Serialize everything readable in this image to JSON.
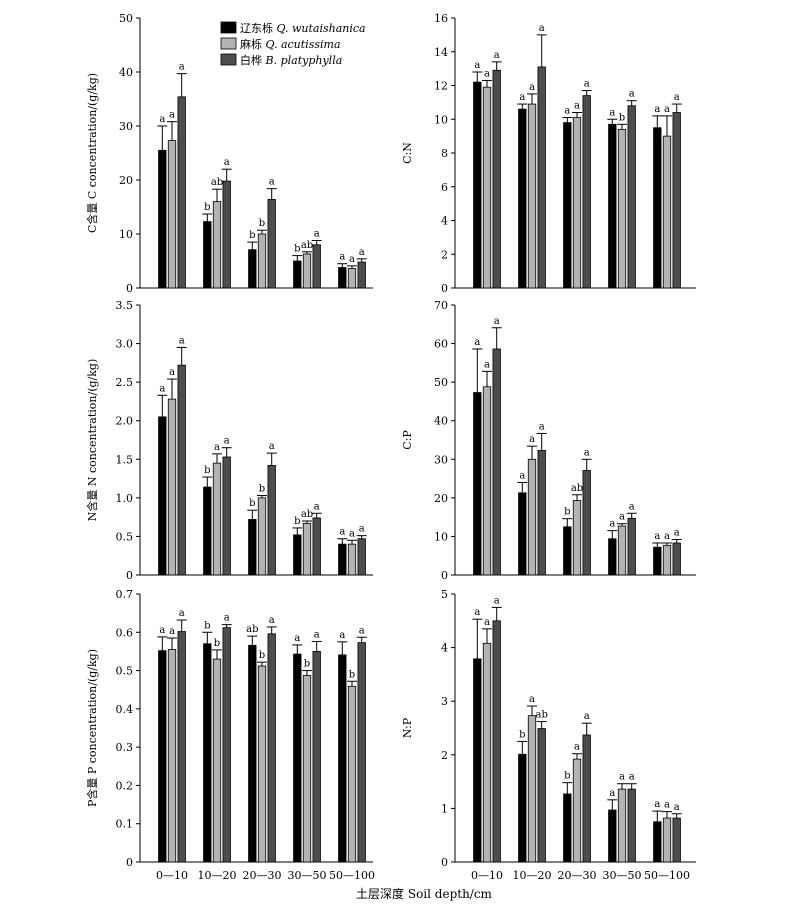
{
  "categories": [
    "0—10",
    "10—20",
    "20—30",
    "30—50",
    "50—100"
  ],
  "xlabel": "土层深度 Soil depth/cm",
  "colors": [
    "#000000",
    "#b3b3b3",
    "#4d4d4d"
  ],
  "legend": [
    {
      "cn": "辽东栎 ",
      "latin": "Q. wutaishanica"
    },
    {
      "cn": "麻栎 ",
      "latin": "Q. acutissima"
    },
    {
      "cn": "白桦 ",
      "latin": "B. platyphylla"
    }
  ],
  "chart_data": [
    {
      "type": "bar",
      "panel": "C",
      "ylabel": "C含量 C concentration/(g/kg)",
      "ylim": [
        0,
        50
      ],
      "yticks": [
        "0",
        "10",
        "20",
        "30",
        "40",
        "50"
      ],
      "categories": [
        "0—10",
        "10—20",
        "20—30",
        "30—50",
        "50—100"
      ],
      "series": [
        {
          "values": [
            25.5,
            12.3,
            7.1,
            5.0,
            3.8
          ],
          "errors": [
            4.5,
            1.4,
            1.4,
            1.0,
            0.7
          ],
          "labels": [
            "a",
            "b",
            "b",
            "b",
            "a"
          ]
        },
        {
          "values": [
            27.3,
            16.0,
            10.0,
            6.3,
            3.6
          ],
          "errors": [
            3.5,
            2.3,
            0.7,
            0.4,
            0.5
          ],
          "labels": [
            "a",
            "ab",
            "b",
            "ab",
            "a"
          ]
        },
        {
          "values": [
            35.4,
            19.8,
            16.4,
            8.0,
            4.8
          ],
          "errors": [
            4.3,
            2.2,
            2.0,
            0.8,
            0.6
          ],
          "labels": [
            "a",
            "a",
            "a",
            "a",
            "a"
          ]
        }
      ]
    },
    {
      "type": "bar",
      "panel": "C:N",
      "ylabel": "C:N",
      "ylim": [
        0,
        16
      ],
      "yticks": [
        "0",
        "2",
        "4",
        "6",
        "8",
        "10",
        "12",
        "14",
        "16"
      ],
      "categories": [
        "0—10",
        "10—20",
        "20—30",
        "30—50",
        "50—100"
      ],
      "series": [
        {
          "values": [
            12.2,
            10.6,
            9.8,
            9.7,
            9.5
          ],
          "errors": [
            0.6,
            0.3,
            0.3,
            0.3,
            0.7
          ],
          "labels": [
            "a",
            "a",
            "a",
            "a",
            "a"
          ]
        },
        {
          "values": [
            11.9,
            10.9,
            10.1,
            9.4,
            9.0
          ],
          "errors": [
            0.4,
            0.6,
            0.3,
            0.3,
            1.2
          ],
          "labels": [
            "a",
            "a",
            "a",
            "b",
            "a"
          ]
        },
        {
          "values": [
            12.9,
            13.1,
            11.4,
            10.8,
            10.4
          ],
          "errors": [
            0.5,
            1.9,
            0.3,
            0.3,
            0.5
          ],
          "labels": [
            "a",
            "a",
            "a",
            "a",
            "a"
          ]
        }
      ]
    },
    {
      "type": "bar",
      "panel": "N",
      "ylabel": "N含量 N concentration/(g/kg)",
      "ylim": [
        0,
        3.5
      ],
      "yticks": [
        "0",
        "0.5",
        "1.0",
        "1.5",
        "2.0",
        "2.5",
        "3.0",
        "3.5"
      ],
      "categories": [
        "0—10",
        "10—20",
        "20—30",
        "30—50",
        "50—100"
      ],
      "series": [
        {
          "values": [
            2.05,
            1.14,
            0.72,
            0.52,
            0.4
          ],
          "errors": [
            0.28,
            0.13,
            0.12,
            0.09,
            0.07
          ],
          "labels": [
            "a",
            "b",
            "b",
            "b",
            "a"
          ]
        },
        {
          "values": [
            2.28,
            1.45,
            1.0,
            0.67,
            0.4
          ],
          "errors": [
            0.26,
            0.12,
            0.03,
            0.03,
            0.05
          ],
          "labels": [
            "a",
            "a",
            "b",
            "ab",
            "a"
          ]
        },
        {
          "values": [
            2.72,
            1.53,
            1.42,
            0.74,
            0.47
          ],
          "errors": [
            0.23,
            0.12,
            0.16,
            0.06,
            0.04
          ],
          "labels": [
            "a",
            "a",
            "a",
            "a",
            "a"
          ]
        }
      ]
    },
    {
      "type": "bar",
      "panel": "C:P",
      "ylabel": "C:P",
      "ylim": [
        0,
        70
      ],
      "yticks": [
        "0",
        "10",
        "20",
        "30",
        "40",
        "50",
        "60",
        "70"
      ],
      "categories": [
        "0—10",
        "10—20",
        "20—30",
        "30—50",
        "50—100"
      ],
      "series": [
        {
          "values": [
            47.3,
            21.3,
            12.5,
            9.4,
            7.2
          ],
          "errors": [
            11.3,
            2.7,
            2.1,
            2.1,
            1.1
          ],
          "labels": [
            "a",
            "a",
            "b",
            "a",
            "a"
          ]
        },
        {
          "values": [
            48.8,
            30.0,
            19.3,
            12.7,
            7.7
          ],
          "errors": [
            4.0,
            3.4,
            1.5,
            0.6,
            0.6
          ],
          "labels": [
            "a",
            "a",
            "ab",
            "a",
            "a"
          ]
        },
        {
          "values": [
            58.6,
            32.3,
            27.1,
            14.7,
            8.3
          ],
          "errors": [
            5.5,
            4.4,
            2.9,
            1.3,
            0.9
          ],
          "labels": [
            "a",
            "a",
            "a",
            "a",
            "a"
          ]
        }
      ]
    },
    {
      "type": "bar",
      "panel": "P",
      "ylabel": "P含量 P concentration/(g/kg)",
      "ylim": [
        0,
        0.7
      ],
      "yticks": [
        "0",
        "0.1",
        "0.2",
        "0.3",
        "0.4",
        "0.5",
        "0.6",
        "0.7"
      ],
      "categories": [
        "0—10",
        "10—20",
        "20—30",
        "30—50",
        "50—100"
      ],
      "series": [
        {
          "values": [
            0.552,
            0.57,
            0.566,
            0.543,
            0.541
          ],
          "errors": [
            0.036,
            0.03,
            0.024,
            0.024,
            0.034
          ],
          "labels": [
            "a",
            "b",
            "ab",
            "a",
            "a"
          ]
        },
        {
          "values": [
            0.555,
            0.53,
            0.512,
            0.487,
            0.459
          ],
          "errors": [
            0.03,
            0.024,
            0.01,
            0.013,
            0.013
          ],
          "labels": [
            "a",
            "b",
            "b",
            "b",
            "b"
          ]
        },
        {
          "values": [
            0.602,
            0.612,
            0.596,
            0.55,
            0.573
          ],
          "errors": [
            0.03,
            0.008,
            0.018,
            0.026,
            0.014
          ],
          "labels": [
            "a",
            "a",
            "a",
            "a",
            "a"
          ]
        }
      ]
    },
    {
      "type": "bar",
      "panel": "N:P",
      "ylabel": "N:P",
      "ylim": [
        0,
        5
      ],
      "yticks": [
        "0",
        "1",
        "2",
        "3",
        "4",
        "5"
      ],
      "categories": [
        "0—10",
        "10—20",
        "20—30",
        "30—50",
        "50—100"
      ],
      "series": [
        {
          "values": [
            3.79,
            2.01,
            1.27,
            0.97,
            0.75
          ],
          "errors": [
            0.74,
            0.24,
            0.21,
            0.19,
            0.2
          ],
          "labels": [
            "a",
            "b",
            "b",
            "a",
            "a"
          ]
        },
        {
          "values": [
            4.08,
            2.73,
            1.92,
            1.36,
            0.82
          ],
          "errors": [
            0.27,
            0.18,
            0.1,
            0.1,
            0.12
          ],
          "labels": [
            "a",
            "a",
            "a",
            "a",
            "a"
          ]
        },
        {
          "values": [
            4.5,
            2.49,
            2.37,
            1.36,
            0.82
          ],
          "errors": [
            0.25,
            0.13,
            0.22,
            0.1,
            0.08
          ],
          "labels": [
            "a",
            "ab",
            "a",
            "a",
            "a"
          ]
        }
      ]
    }
  ]
}
